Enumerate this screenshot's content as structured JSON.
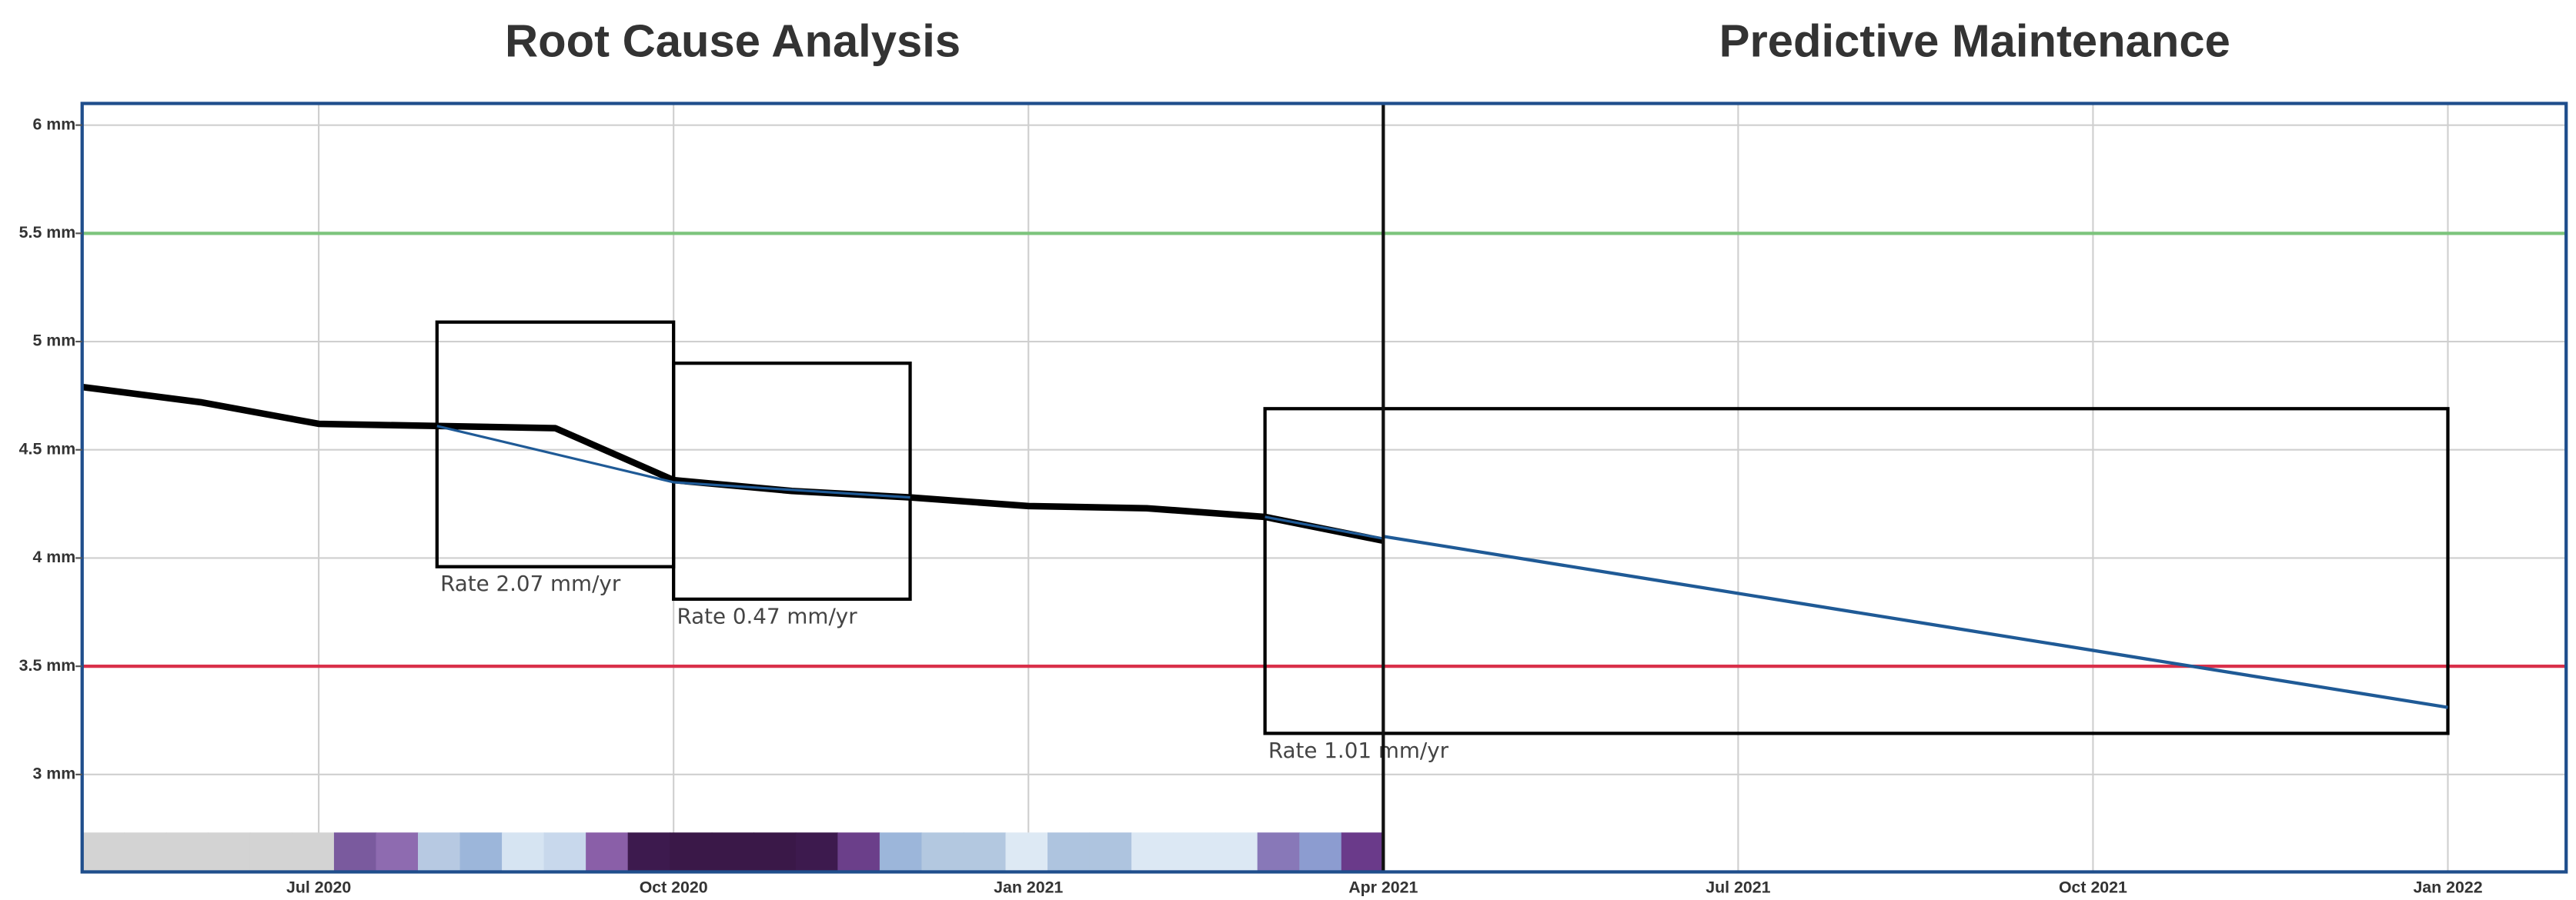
{
  "chart_data": {
    "type": "line",
    "titles": [
      "Root Cause Analysis",
      "Predictive Maintenance"
    ],
    "xlim": [
      "2020-05",
      "2022-02"
    ],
    "xticks": [
      {
        "value": "2020-07",
        "label": "Jul 2020"
      },
      {
        "value": "2020-10",
        "label": "Oct 2020"
      },
      {
        "value": "2021-01",
        "label": "Jan 2021"
      },
      {
        "value": "2021-04",
        "label": "Apr 2021"
      },
      {
        "value": "2021-07",
        "label": "Jul 2021"
      },
      {
        "value": "2021-10",
        "label": "Oct 2021"
      },
      {
        "value": "2022-01",
        "label": "Jan 2022"
      }
    ],
    "ylim": [
      2.55,
      6.1
    ],
    "yticks": [
      {
        "value": 3,
        "label": "3 mm"
      },
      {
        "value": 3.5,
        "label": "3.5 mm"
      },
      {
        "value": 4,
        "label": "4 mm"
      },
      {
        "value": 4.5,
        "label": "4.5 mm"
      },
      {
        "value": 5,
        "label": "5 mm"
      },
      {
        "value": 5.5,
        "label": "5.5 mm"
      },
      {
        "value": 6,
        "label": "6 mm"
      }
    ],
    "grid": true,
    "series": [
      {
        "color": "#000000",
        "width": 4,
        "x": [
          "2020-05",
          "2020-06",
          "2020-07",
          "2020-08",
          "2020-09",
          "2020-10",
          "2020-11",
          "2020-12",
          "2021-01",
          "2021-02",
          "2021-03",
          "2021-04"
        ],
        "values": [
          4.79,
          4.72,
          4.62,
          4.61,
          4.6,
          4.36,
          4.31,
          4.28,
          4.24,
          4.23,
          4.19,
          4.08
        ]
      },
      {
        "color": "#1f5a96",
        "width": 1.5,
        "x": [
          "2020-08",
          "2020-10"
        ],
        "values": [
          4.61,
          4.35
        ]
      },
      {
        "color": "#1f5a96",
        "width": 1.5,
        "x": [
          "2020-10",
          "2020-12"
        ],
        "values": [
          4.35,
          4.28
        ]
      },
      {
        "color": "#1f5a96",
        "width": 1.5,
        "x": [
          "2021-03",
          "2021-04"
        ],
        "values": [
          4.19,
          4.09
        ]
      },
      {
        "color": "#1f5a96",
        "width": 2,
        "x": [
          "2021-04",
          "2022-01"
        ],
        "values": [
          4.1,
          3.31
        ]
      }
    ],
    "hlines": [
      {
        "value": 5.5,
        "color": "#7cc47c"
      },
      {
        "value": 3.5,
        "color": "#d9304a"
      }
    ],
    "divider": "2021-04",
    "annotations": [
      {
        "text": "Rate 2.07 mm/yr",
        "x": [
          "2020-08",
          "2020-10"
        ],
        "y": [
          3.96,
          5.09
        ]
      },
      {
        "text": "Rate 0.47 mm/yr",
        "x": [
          "2020-10",
          "2020-12"
        ],
        "y": [
          3.81,
          4.9
        ]
      },
      {
        "text": "Rate 1.01 mm/yr",
        "x": [
          "2021-03",
          "2022-01"
        ],
        "y": [
          3.19,
          4.69
        ]
      }
    ],
    "strip_colors": [
      "#d3d3d3",
      "#d3d3d3",
      "#d3d3d3",
      "#d3d3d3",
      "#d3d3d3",
      "#d3d3d3",
      "#7a5a9e",
      "#8e6bb0",
      "#b7c9e2",
      "#9cb6da",
      "#d6e4f2",
      "#c8d8ec",
      "#8a5fa8",
      "#3d1a4e",
      "#3a1848",
      "#3a1848",
      "#3a1848",
      "#3d1a4e",
      "#6b3f8a",
      "#9cb6da",
      "#b3c8e0",
      "#b3c8e0",
      "#dde9f4",
      "#aec4df",
      "#aec4df",
      "#dce8f4",
      "#dce8f4",
      "#dce8f4",
      "#8878b8",
      "#8c9cd0",
      "#6a3a8a"
    ]
  }
}
